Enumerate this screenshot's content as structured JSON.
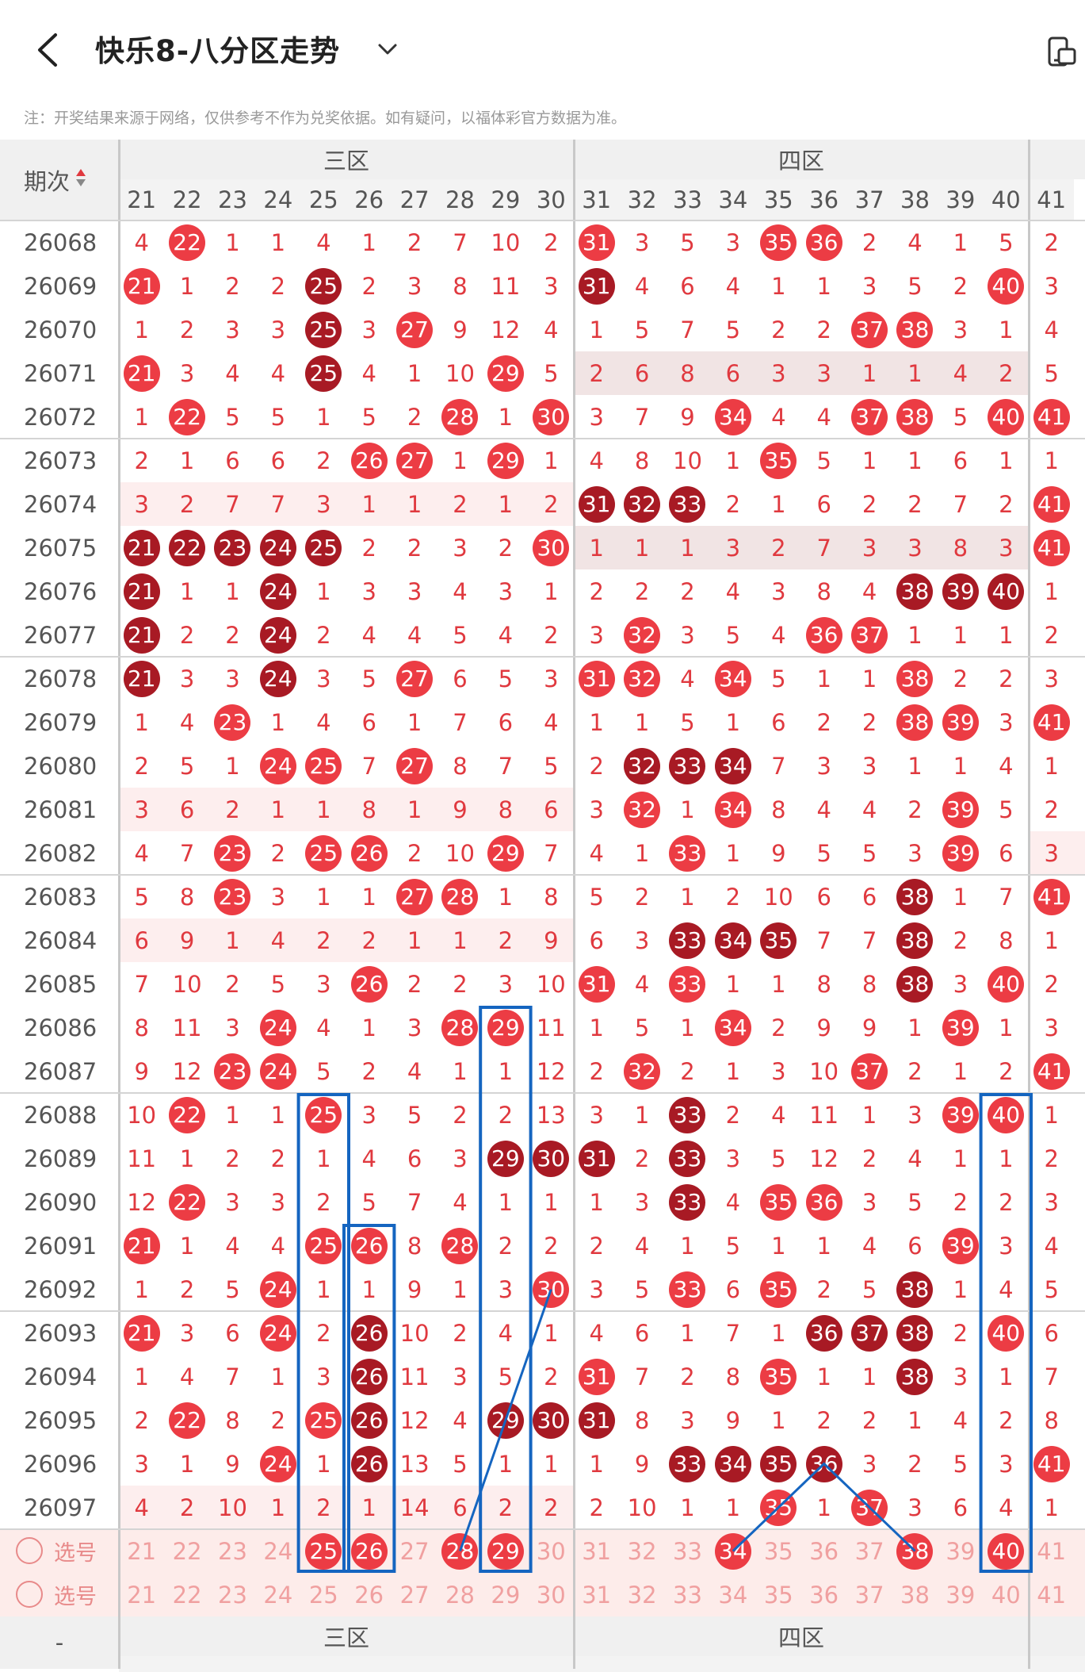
{
  "header": {
    "title": "快乐8-八分区走势",
    "back_icon": "chevron-left-icon",
    "dropdown_icon": "chevron-down-icon",
    "device_icon": "device-switch-icon"
  },
  "note": "注：开奖结果来源于网络，仅供参考不作为兑奖依据。如有疑问，以福体彩官方数据为准。",
  "table": {
    "period_header": "期次",
    "zones": [
      {
        "name": "三区"
      },
      {
        "name": "四区"
      }
    ],
    "columns": [
      "21",
      "22",
      "23",
      "24",
      "25",
      "26",
      "27",
      "28",
      "29",
      "30",
      "31",
      "32",
      "33",
      "34",
      "35",
      "36",
      "37",
      "38",
      "39",
      "40",
      "41"
    ],
    "rows": [
      {
        "period": "26068",
        "cells": [
          "4",
          "22",
          "1",
          "1",
          "4",
          "1",
          "2",
          "7",
          "10",
          "2",
          "31",
          "3",
          "5",
          "3",
          "35",
          "36",
          "2",
          "4",
          "1",
          "5",
          "2"
        ],
        "hits": [
          1,
          10,
          14,
          15
        ]
      },
      {
        "period": "26069",
        "cells": [
          "21",
          "1",
          "2",
          "2",
          "25",
          "2",
          "3",
          "8",
          "11",
          "3",
          "31",
          "4",
          "6",
          "4",
          "1",
          "1",
          "3",
          "5",
          "2",
          "40",
          "3"
        ],
        "hits": [
          0,
          4,
          10,
          19
        ],
        "dark": [
          4,
          10
        ]
      },
      {
        "period": "26070",
        "cells": [
          "1",
          "2",
          "3",
          "3",
          "25",
          "3",
          "27",
          "9",
          "12",
          "4",
          "1",
          "5",
          "7",
          "5",
          "2",
          "2",
          "37",
          "38",
          "3",
          "1",
          "4"
        ],
        "hits": [
          4,
          6,
          16,
          17
        ],
        "dark": [
          4
        ]
      },
      {
        "period": "26071",
        "cells": [
          "21",
          "3",
          "4",
          "4",
          "25",
          "4",
          "1",
          "10",
          "29",
          "5",
          "2",
          "6",
          "8",
          "6",
          "3",
          "3",
          "1",
          "1",
          "4",
          "2",
          "5"
        ],
        "hits": [
          0,
          4,
          8
        ],
        "dark": [
          4
        ],
        "shade": "zone4"
      },
      {
        "period": "26072",
        "cells": [
          "1",
          "22",
          "5",
          "5",
          "1",
          "5",
          "2",
          "28",
          "1",
          "30",
          "3",
          "7",
          "9",
          "34",
          "4",
          "4",
          "37",
          "38",
          "5",
          "40",
          "41"
        ],
        "hits": [
          1,
          7,
          9,
          13,
          16,
          17,
          19,
          20
        ]
      },
      {
        "period": "26073",
        "cells": [
          "2",
          "1",
          "6",
          "6",
          "2",
          "26",
          "27",
          "1",
          "29",
          "1",
          "4",
          "8",
          "10",
          "1",
          "35",
          "5",
          "1",
          "1",
          "6",
          "1",
          "1"
        ],
        "hits": [
          5,
          6,
          8,
          14
        ]
      },
      {
        "period": "26074",
        "cells": [
          "3",
          "2",
          "7",
          "7",
          "3",
          "1",
          "1",
          "2",
          "1",
          "2",
          "31",
          "32",
          "33",
          "2",
          "1",
          "6",
          "2",
          "2",
          "7",
          "2",
          "41"
        ],
        "hits": [
          10,
          11,
          12,
          20
        ],
        "dark": [
          10,
          11,
          12
        ],
        "shade": "zone3"
      },
      {
        "period": "26075",
        "cells": [
          "21",
          "22",
          "23",
          "24",
          "25",
          "2",
          "2",
          "3",
          "2",
          "30",
          "1",
          "1",
          "1",
          "3",
          "2",
          "7",
          "3",
          "3",
          "8",
          "3",
          "41"
        ],
        "hits": [
          0,
          1,
          2,
          3,
          4,
          9,
          20
        ],
        "dark": [
          0,
          1,
          2,
          3,
          4
        ],
        "shade": "zone4"
      },
      {
        "period": "26076",
        "cells": [
          "21",
          "1",
          "1",
          "24",
          "1",
          "3",
          "3",
          "4",
          "3",
          "1",
          "2",
          "2",
          "2",
          "4",
          "3",
          "8",
          "4",
          "38",
          "39",
          "40",
          "1"
        ],
        "hits": [
          0,
          3,
          17,
          18,
          19
        ],
        "dark": [
          0,
          3,
          17,
          18,
          19
        ]
      },
      {
        "period": "26077",
        "cells": [
          "21",
          "2",
          "2",
          "24",
          "2",
          "4",
          "4",
          "5",
          "4",
          "2",
          "3",
          "32",
          "3",
          "5",
          "4",
          "36",
          "37",
          "1",
          "1",
          "1",
          "2"
        ],
        "hits": [
          0,
          3,
          11,
          15,
          16
        ],
        "dark": [
          0,
          3
        ]
      },
      {
        "period": "26078",
        "cells": [
          "21",
          "3",
          "3",
          "24",
          "3",
          "5",
          "27",
          "6",
          "5",
          "3",
          "31",
          "32",
          "4",
          "34",
          "5",
          "1",
          "1",
          "38",
          "2",
          "2",
          "3"
        ],
        "hits": [
          0,
          3,
          6,
          10,
          11,
          13,
          17
        ],
        "dark": [
          0,
          3
        ]
      },
      {
        "period": "26079",
        "cells": [
          "1",
          "4",
          "23",
          "1",
          "4",
          "6",
          "1",
          "7",
          "6",
          "4",
          "1",
          "1",
          "5",
          "1",
          "6",
          "2",
          "2",
          "38",
          "39",
          "3",
          "41"
        ],
        "hits": [
          2,
          17,
          18,
          20
        ]
      },
      {
        "period": "26080",
        "cells": [
          "2",
          "5",
          "1",
          "24",
          "25",
          "7",
          "27",
          "8",
          "7",
          "5",
          "2",
          "32",
          "33",
          "34",
          "7",
          "3",
          "3",
          "1",
          "1",
          "4",
          "1"
        ],
        "hits": [
          3,
          4,
          6,
          11,
          12,
          13
        ],
        "dark": [
          11,
          12,
          13
        ]
      },
      {
        "period": "26081",
        "cells": [
          "3",
          "6",
          "2",
          "1",
          "1",
          "8",
          "1",
          "9",
          "8",
          "6",
          "3",
          "32",
          "1",
          "34",
          "8",
          "4",
          "4",
          "2",
          "39",
          "5",
          "2"
        ],
        "hits": [
          11,
          13,
          18
        ],
        "shade": "zone3"
      },
      {
        "period": "26082",
        "cells": [
          "4",
          "7",
          "23",
          "2",
          "25",
          "26",
          "2",
          "10",
          "29",
          "7",
          "4",
          "1",
          "33",
          "1",
          "9",
          "5",
          "5",
          "3",
          "39",
          "6",
          "3"
        ],
        "hits": [
          2,
          4,
          5,
          8,
          12,
          18
        ],
        "shade": "col41"
      },
      {
        "period": "26083",
        "cells": [
          "5",
          "8",
          "23",
          "3",
          "1",
          "1",
          "27",
          "28",
          "1",
          "8",
          "5",
          "2",
          "1",
          "2",
          "10",
          "6",
          "6",
          "38",
          "1",
          "7",
          "41"
        ],
        "hits": [
          2,
          6,
          7,
          17,
          20
        ],
        "dark": [
          17
        ]
      },
      {
        "period": "26084",
        "cells": [
          "6",
          "9",
          "1",
          "4",
          "2",
          "2",
          "1",
          "1",
          "2",
          "9",
          "6",
          "3",
          "33",
          "34",
          "35",
          "7",
          "7",
          "38",
          "2",
          "8",
          "1"
        ],
        "hits": [
          12,
          13,
          14,
          17
        ],
        "dark": [
          12,
          13,
          14,
          17
        ],
        "shade": "zone3"
      },
      {
        "period": "26085",
        "cells": [
          "7",
          "10",
          "2",
          "5",
          "3",
          "26",
          "2",
          "2",
          "3",
          "10",
          "31",
          "4",
          "33",
          "1",
          "1",
          "8",
          "8",
          "38",
          "3",
          "40",
          "2"
        ],
        "hits": [
          5,
          10,
          12,
          17,
          19
        ],
        "dark": [
          17
        ]
      },
      {
        "period": "26086",
        "cells": [
          "8",
          "11",
          "3",
          "24",
          "4",
          "1",
          "3",
          "28",
          "29",
          "11",
          "1",
          "5",
          "1",
          "34",
          "2",
          "9",
          "9",
          "1",
          "39",
          "1",
          "3"
        ],
        "hits": [
          3,
          7,
          8,
          13,
          18
        ]
      },
      {
        "period": "26087",
        "cells": [
          "9",
          "12",
          "23",
          "24",
          "5",
          "2",
          "4",
          "1",
          "1",
          "12",
          "2",
          "32",
          "2",
          "1",
          "3",
          "10",
          "37",
          "2",
          "1",
          "2",
          "41"
        ],
        "hits": [
          2,
          3,
          11,
          16,
          20
        ]
      },
      {
        "period": "26088",
        "cells": [
          "10",
          "22",
          "1",
          "1",
          "25",
          "3",
          "5",
          "2",
          "2",
          "13",
          "3",
          "1",
          "33",
          "2",
          "4",
          "11",
          "1",
          "3",
          "39",
          "40",
          "1"
        ],
        "hits": [
          1,
          4,
          12,
          18,
          19
        ],
        "dark": [
          12
        ]
      },
      {
        "period": "26089",
        "cells": [
          "11",
          "1",
          "2",
          "2",
          "1",
          "4",
          "6",
          "3",
          "29",
          "30",
          "31",
          "2",
          "33",
          "3",
          "5",
          "12",
          "2",
          "4",
          "1",
          "1",
          "2"
        ],
        "hits": [
          8,
          9,
          10,
          12
        ],
        "dark": [
          8,
          9,
          10,
          12
        ]
      },
      {
        "period": "26090",
        "cells": [
          "12",
          "22",
          "3",
          "3",
          "2",
          "5",
          "7",
          "4",
          "1",
          "1",
          "1",
          "3",
          "33",
          "4",
          "35",
          "36",
          "3",
          "5",
          "2",
          "2",
          "3"
        ],
        "hits": [
          1,
          12,
          14,
          15
        ],
        "dark": [
          12
        ]
      },
      {
        "period": "26091",
        "cells": [
          "21",
          "1",
          "4",
          "4",
          "25",
          "26",
          "8",
          "28",
          "2",
          "2",
          "2",
          "4",
          "1",
          "5",
          "1",
          "1",
          "4",
          "6",
          "39",
          "3",
          "4"
        ],
        "hits": [
          0,
          4,
          5,
          7,
          18
        ]
      },
      {
        "period": "26092",
        "cells": [
          "1",
          "2",
          "5",
          "24",
          "1",
          "1",
          "9",
          "1",
          "3",
          "30",
          "3",
          "5",
          "33",
          "6",
          "35",
          "2",
          "5",
          "38",
          "1",
          "4",
          "5"
        ],
        "hits": [
          3,
          9,
          12,
          14,
          17
        ],
        "dark": [
          17
        ]
      },
      {
        "period": "26093",
        "cells": [
          "21",
          "3",
          "6",
          "24",
          "2",
          "26",
          "10",
          "2",
          "4",
          "1",
          "4",
          "6",
          "1",
          "7",
          "1",
          "36",
          "37",
          "38",
          "2",
          "40",
          "6"
        ],
        "hits": [
          0,
          3,
          5,
          15,
          16,
          17,
          19
        ],
        "dark": [
          5,
          15,
          16,
          17
        ]
      },
      {
        "period": "26094",
        "cells": [
          "1",
          "4",
          "7",
          "1",
          "3",
          "26",
          "11",
          "3",
          "5",
          "2",
          "31",
          "7",
          "2",
          "8",
          "35",
          "1",
          "1",
          "38",
          "3",
          "1",
          "7"
        ],
        "hits": [
          5,
          10,
          14,
          17
        ],
        "dark": [
          5,
          17
        ]
      },
      {
        "period": "26095",
        "cells": [
          "2",
          "22",
          "8",
          "2",
          "25",
          "26",
          "12",
          "4",
          "29",
          "30",
          "31",
          "8",
          "3",
          "9",
          "1",
          "2",
          "2",
          "1",
          "4",
          "2",
          "8"
        ],
        "hits": [
          1,
          4,
          5,
          8,
          9,
          10
        ],
        "dark": [
          5,
          8,
          9,
          10
        ]
      },
      {
        "period": "26096",
        "cells": [
          "3",
          "1",
          "9",
          "24",
          "1",
          "26",
          "13",
          "5",
          "1",
          "1",
          "1",
          "9",
          "33",
          "34",
          "35",
          "36",
          "3",
          "2",
          "5",
          "3",
          "41"
        ],
        "hits": [
          3,
          5,
          12,
          13,
          14,
          15,
          20
        ],
        "dark": [
          5,
          12,
          13,
          14,
          15
        ]
      },
      {
        "period": "26097",
        "cells": [
          "4",
          "2",
          "10",
          "1",
          "2",
          "1",
          "14",
          "6",
          "2",
          "2",
          "2",
          "10",
          "1",
          "1",
          "35",
          "1",
          "37",
          "3",
          "6",
          "4",
          "1"
        ],
        "hits": [
          14,
          16
        ],
        "shade": "zone3"
      }
    ],
    "select_rows": [
      {
        "label": "选号",
        "cells": [
          "21",
          "22",
          "23",
          "24",
          "25",
          "26",
          "27",
          "28",
          "29",
          "30",
          "31",
          "32",
          "33",
          "34",
          "35",
          "36",
          "37",
          "38",
          "39",
          "40",
          "41"
        ],
        "selected": [
          4,
          5,
          7,
          8,
          13,
          17,
          19
        ]
      },
      {
        "label": "选号",
        "cells": [
          "21",
          "22",
          "23",
          "24",
          "25",
          "26",
          "27",
          "28",
          "29",
          "30",
          "31",
          "32",
          "33",
          "34",
          "35",
          "36",
          "37",
          "38",
          "39",
          "40",
          "41"
        ],
        "selected": []
      }
    ],
    "footer_period": "-"
  },
  "colors": {
    "accent": "#ec3c44",
    "dark_hit": "#a81a24",
    "line": "#1565c0",
    "shade_zone3": "#fdeeee",
    "shade_zone4": "#efe3e3",
    "select_row": "#fdecea"
  }
}
